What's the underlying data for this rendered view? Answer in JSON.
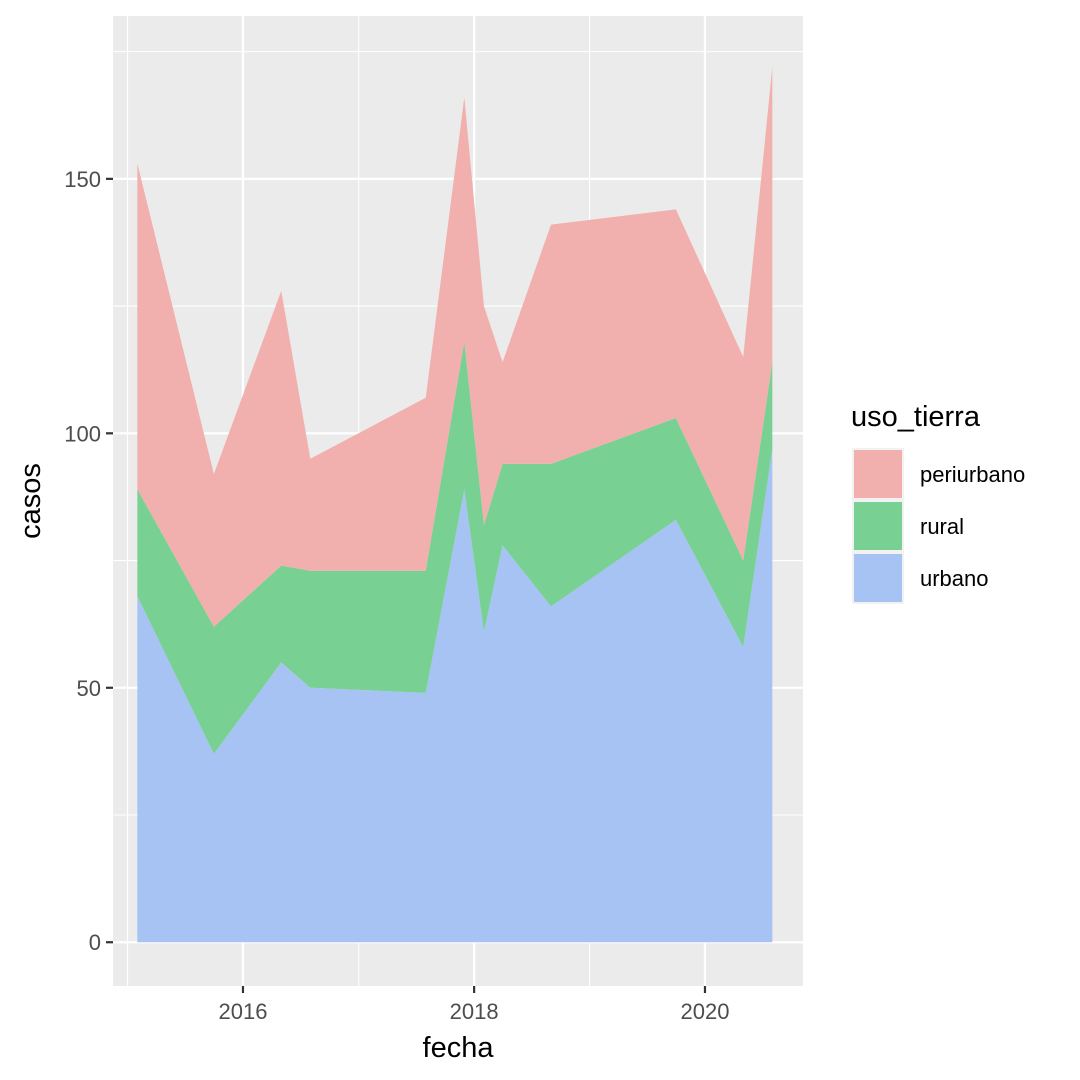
{
  "chart_data": {
    "type": "area",
    "stacked": true,
    "x": [
      "2015-02-01",
      "2015-10-01",
      "2016-05-01",
      "2016-08-01",
      "2017-08-01",
      "2017-12-01",
      "2018-02-01",
      "2018-04-01",
      "2018-09-01",
      "2019-10-01",
      "2020-05-01",
      "2020-08-01"
    ],
    "series": [
      {
        "name": "urbano",
        "color": "#A6C3F4",
        "values": [
          68,
          37,
          55,
          50,
          49,
          89,
          61,
          78,
          66,
          83,
          58,
          97
        ]
      },
      {
        "name": "rural",
        "color": "#78D193",
        "values": [
          21,
          25,
          19,
          23,
          24,
          29,
          21,
          16,
          28,
          20,
          17,
          17
        ]
      },
      {
        "name": "periurbano",
        "color": "#F1B0AD",
        "values": [
          64,
          30,
          54,
          22,
          34,
          48,
          43,
          20,
          47,
          41,
          40,
          58
        ]
      }
    ],
    "xlabel": "fecha",
    "ylabel": "casos",
    "xticks": [
      "2016",
      "2018",
      "2020"
    ],
    "yticks": [
      "0",
      "50",
      "100",
      "150"
    ],
    "xlim": [
      "2014-11-16",
      "2020-11-06"
    ],
    "ylim": [
      -8.6,
      182
    ],
    "grid": true,
    "legend": {
      "title": "uso_tierra",
      "position": "right",
      "entries": [
        "periurbano",
        "rural",
        "urbano"
      ]
    }
  }
}
